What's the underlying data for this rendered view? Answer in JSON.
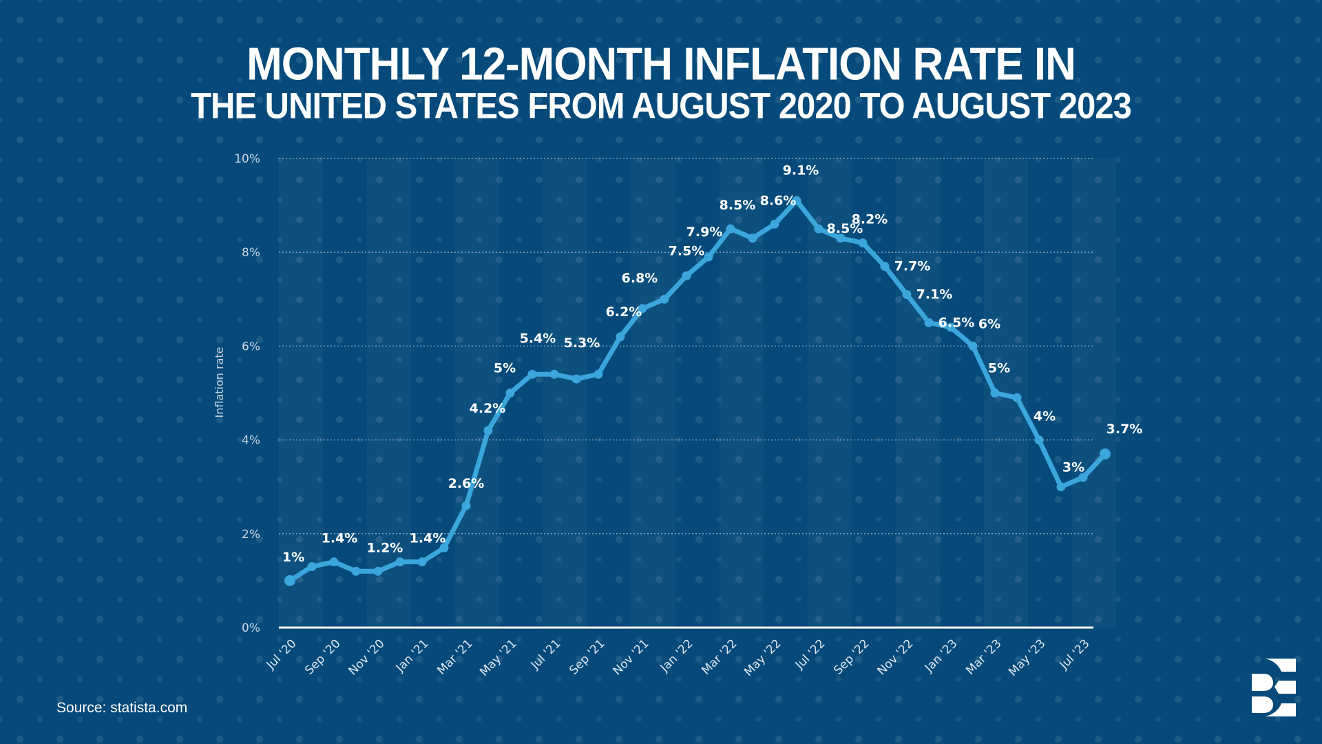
{
  "title": {
    "line1": "MONTHLY 12-MONTH INFLATION RATE IN",
    "line2": "THE UNITED STATES FROM AUGUST 2020 TO AUGUST 2023"
  },
  "source": "Source: statista.com",
  "logo": {
    "icon": "brand-logo-icon"
  },
  "colors": {
    "background": "#054a7a",
    "line": "#3aa6dc",
    "text": "#ffffff",
    "axis_text": "#c9d6e3"
  },
  "chart_data": {
    "type": "line",
    "title": "Monthly 12-month inflation rate in the United States from August 2020 to August 2023",
    "xlabel": "",
    "ylabel": "Inflation rate",
    "ylim": [
      0,
      10
    ],
    "yticks": [
      "0%",
      "2%",
      "4%",
      "6%",
      "8%",
      "10%"
    ],
    "ytick_values": [
      0,
      2,
      4,
      6,
      8,
      10
    ],
    "grid": true,
    "legend": "none",
    "x": [
      "Jul '20",
      "Aug '20",
      "Sep '20",
      "Oct '20",
      "Nov '20",
      "Dec '20",
      "Jan '21",
      "Feb '21",
      "Mar '21",
      "Apr '21",
      "May '21",
      "Jun '21",
      "Jul '21",
      "Aug '21",
      "Sep '21",
      "Oct '21",
      "Nov '21",
      "Dec '21",
      "Jan '22",
      "Feb '22",
      "Mar '22",
      "Apr '22",
      "May '22",
      "Jun '22",
      "Jul '22",
      "Aug '22",
      "Sep '22",
      "Oct '22",
      "Nov '22",
      "Dec '22",
      "Jan '23",
      "Feb '23",
      "Mar '23",
      "Apr '23",
      "May '23",
      "Jun '23",
      "Jul '23",
      "Aug '23"
    ],
    "xtick_labels": [
      "Jul '20",
      "Sep '20",
      "Nov '20",
      "Jan '21",
      "Mar '21",
      "May '21",
      "Jul '21",
      "Sep '21",
      "Nov '21",
      "Jan '22",
      "Mar '22",
      "May '22",
      "Jul '22",
      "Sep '22",
      "Nov '22",
      "Jan '23",
      "Mar '23",
      "May '23",
      "Jul '23"
    ],
    "series": [
      {
        "name": "Inflation rate",
        "values": [
          1.0,
          1.3,
          1.4,
          1.2,
          1.2,
          1.4,
          1.4,
          1.7,
          2.6,
          4.2,
          5.0,
          5.4,
          5.4,
          5.3,
          5.4,
          6.2,
          6.8,
          7.0,
          7.5,
          7.9,
          8.5,
          8.3,
          8.6,
          9.1,
          8.5,
          8.3,
          8.2,
          7.7,
          7.1,
          6.5,
          6.4,
          6.0,
          5.0,
          4.9,
          4.0,
          3.0,
          3.2,
          3.7
        ]
      }
    ],
    "data_labels": [
      {
        "index": 0,
        "text": "1%"
      },
      {
        "index": 2,
        "text": "1.4%"
      },
      {
        "index": 4,
        "text": "1.2%"
      },
      {
        "index": 6,
        "text": "1.4%"
      },
      {
        "index": 8,
        "text": "2.6%"
      },
      {
        "index": 9,
        "text": "4.2%"
      },
      {
        "index": 10,
        "text": "5%"
      },
      {
        "index": 11,
        "text": "5.4%"
      },
      {
        "index": 13,
        "text": "5.3%"
      },
      {
        "index": 15,
        "text": "6.2%"
      },
      {
        "index": 16,
        "text": "6.8%"
      },
      {
        "index": 18,
        "text": "7.5%"
      },
      {
        "index": 19,
        "text": "7.9%"
      },
      {
        "index": 20,
        "text": "8.5%"
      },
      {
        "index": 22,
        "text": "8.6%"
      },
      {
        "index": 23,
        "text": "9.1%"
      },
      {
        "index": 24,
        "text": "8.5%"
      },
      {
        "index": 26,
        "text": "8.2%"
      },
      {
        "index": 27,
        "text": "7.7%"
      },
      {
        "index": 28,
        "text": "7.1%"
      },
      {
        "index": 29,
        "text": "6.5%"
      },
      {
        "index": 31,
        "text": "6%"
      },
      {
        "index": 32,
        "text": "5%"
      },
      {
        "index": 34,
        "text": "4%"
      },
      {
        "index": 35,
        "text": "3%"
      },
      {
        "index": 37,
        "text": "3.7%"
      }
    ]
  }
}
